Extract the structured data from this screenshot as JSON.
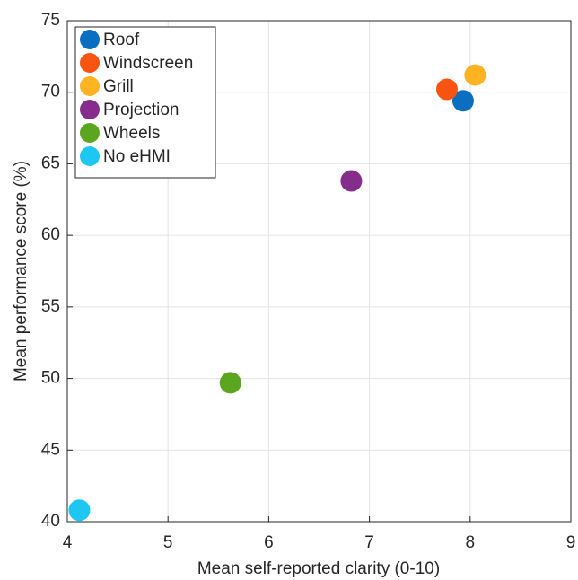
{
  "chart_data": {
    "type": "scatter",
    "xlabel": "Mean self-reported clarity (0-10)",
    "ylabel": "Mean performance score (%)",
    "xlim": [
      4,
      9
    ],
    "ylim": [
      40,
      75
    ],
    "xticks": [
      4,
      5,
      6,
      7,
      8,
      9
    ],
    "yticks": [
      40,
      45,
      50,
      55,
      60,
      65,
      70,
      75
    ],
    "grid": true,
    "legend": "top-left",
    "series": [
      {
        "name": "Roof",
        "color": "#0a6fc0",
        "x": [
          7.93
        ],
        "values": [
          69.4
        ]
      },
      {
        "name": "Windscreen",
        "color": "#f95412",
        "x": [
          7.77
        ],
        "values": [
          70.2
        ]
      },
      {
        "name": "Grill",
        "color": "#fdb322",
        "x": [
          8.05
        ],
        "values": [
          71.2
        ]
      },
      {
        "name": "Projection",
        "color": "#852c8c",
        "x": [
          6.82
        ],
        "values": [
          63.8
        ]
      },
      {
        "name": "Wheels",
        "color": "#5aa61e",
        "x": [
          5.62
        ],
        "values": [
          49.7
        ]
      },
      {
        "name": "No eHMI",
        "color": "#1ec6f2",
        "x": [
          4.12
        ],
        "values": [
          40.8
        ]
      }
    ]
  }
}
